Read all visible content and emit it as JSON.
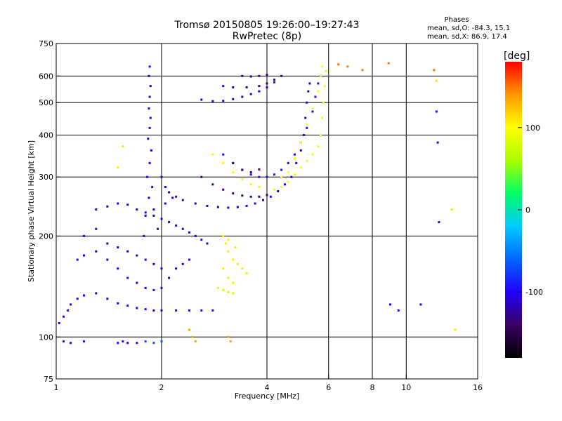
{
  "title_line1": "Tromsø 20150805 19:26:00–19:27:43",
  "title_line2": "RwPretec (8p)",
  "stats": {
    "heading": "Phases",
    "line_o": "mean, sd,O: -84.3, 15.1",
    "line_x": "mean, sd,X: 86.9, 17.4"
  },
  "colorbar": {
    "label": "[deg]",
    "min": -180,
    "max": 180,
    "ticks": [
      {
        "value": 100,
        "label": "100"
      },
      {
        "value": 0,
        "label": "0"
      },
      {
        "value": -100,
        "label": "-100"
      }
    ],
    "colors": [
      "#000000",
      "#3a0060",
      "#2200ff",
      "#0066ff",
      "#00ccff",
      "#00ff66",
      "#aaff00",
      "#ffff00",
      "#ff9900",
      "#ff0000"
    ]
  },
  "chart_data": {
    "type": "scatter",
    "x_scale": "log",
    "y_scale": "log",
    "xlabel": "Frequency [MHz]",
    "ylabel": "Stationary phase Virtual Height [km]",
    "xlim": [
      1,
      16
    ],
    "ylim": [
      75,
      750
    ],
    "xticks": [
      {
        "value": 1,
        "label": "1"
      },
      {
        "value": 2,
        "label": "2"
      },
      {
        "value": 4,
        "label": "4"
      },
      {
        "value": 6,
        "label": "6"
      },
      {
        "value": 8,
        "label": "8"
      },
      {
        "value": 10,
        "label": "10"
      },
      {
        "value": 16,
        "label": "16"
      }
    ],
    "yticks": [
      {
        "value": 75,
        "label": "75"
      },
      {
        "value": 100,
        "label": "100"
      },
      {
        "value": 200,
        "label": "200"
      },
      {
        "value": 300,
        "label": "300"
      },
      {
        "value": 400,
        "label": "400"
      },
      {
        "value": 500,
        "label": "500"
      },
      {
        "value": 600,
        "label": "600"
      },
      {
        "value": 750,
        "label": "750"
      }
    ],
    "grid": true,
    "series": [
      {
        "points": [
          [
            1.85,
            640
          ],
          [
            1.84,
            600
          ],
          [
            1.86,
            560
          ],
          [
            1.85,
            520
          ],
          [
            1.84,
            480
          ],
          [
            1.86,
            450
          ],
          [
            1.85,
            420
          ],
          [
            1.83,
            390
          ],
          [
            1.87,
            360
          ],
          [
            1.85,
            330
          ],
          [
            1.82,
            300
          ],
          [
            1.88,
            280
          ],
          [
            1.84,
            260
          ],
          [
            1.9,
            240
          ],
          [
            1.8,
            230
          ],
          [
            1.95,
            210
          ],
          [
            1.78,
            200
          ],
          [
            2.05,
            250
          ],
          [
            2.15,
            260
          ]
        ],
        "phase": -105
      },
      {
        "points": [
          [
            2.0,
            300
          ],
          [
            2.05,
            280
          ],
          [
            2.1,
            270
          ],
          [
            2.2,
            262
          ],
          [
            2.3,
            256
          ],
          [
            2.5,
            250
          ],
          [
            2.7,
            246
          ],
          [
            2.9,
            244
          ],
          [
            3.1,
            243
          ],
          [
            3.3,
            244
          ],
          [
            3.5,
            246
          ],
          [
            3.7,
            250
          ],
          [
            3.9,
            256
          ],
          [
            4.1,
            262
          ],
          [
            4.3,
            272
          ],
          [
            4.5,
            285
          ],
          [
            4.7,
            300
          ],
          [
            4.85,
            330
          ],
          [
            5.0,
            360
          ],
          [
            5.1,
            400
          ],
          [
            5.15,
            450
          ],
          [
            5.2,
            500
          ],
          [
            5.25,
            540
          ],
          [
            5.3,
            570
          ]
        ],
        "phase": -110
      },
      {
        "points": [
          [
            2.6,
            510
          ],
          [
            2.8,
            505
          ],
          [
            3.0,
            506
          ],
          [
            3.2,
            512
          ],
          [
            3.4,
            520
          ],
          [
            3.6,
            530
          ],
          [
            3.8,
            540
          ],
          [
            4.0,
            555
          ],
          [
            4.2,
            575
          ],
          [
            4.4,
            600
          ]
        ],
        "phase": -115
      },
      {
        "points": [
          [
            3.0,
            560
          ],
          [
            3.2,
            555
          ],
          [
            3.5,
            555
          ],
          [
            3.8,
            560
          ],
          [
            4.0,
            570
          ],
          [
            4.2,
            585
          ]
        ],
        "phase": -125
      },
      {
        "points": [
          [
            3.4,
            600
          ],
          [
            3.6,
            598
          ],
          [
            3.8,
            600
          ],
          [
            4.0,
            605
          ]
        ],
        "phase": -120
      },
      {
        "points": [
          [
            3.0,
            350
          ],
          [
            3.2,
            330
          ],
          [
            3.4,
            315
          ],
          [
            3.6,
            305
          ],
          [
            3.8,
            300
          ],
          [
            4.0,
            300
          ],
          [
            4.2,
            305
          ],
          [
            4.4,
            315
          ],
          [
            4.6,
            330
          ],
          [
            4.8,
            350
          ],
          [
            5.0,
            380
          ],
          [
            5.2,
            420
          ],
          [
            5.4,
            470
          ],
          [
            5.5,
            520
          ],
          [
            5.6,
            570
          ],
          [
            5.7,
            600
          ]
        ],
        "phase": -95
      },
      {
        "points": [
          [
            2.6,
            300
          ],
          [
            2.8,
            285
          ],
          [
            3.0,
            275
          ],
          [
            3.2,
            268
          ],
          [
            3.4,
            264
          ],
          [
            3.6,
            262
          ],
          [
            3.8,
            262
          ],
          [
            4.0,
            265
          ]
        ],
        "phase": -135
      },
      {
        "points": [
          [
            3.2,
            330
          ],
          [
            3.4,
            315
          ],
          [
            3.6,
            310
          ],
          [
            3.8,
            316
          ]
        ],
        "phase": -140
      },
      {
        "points": [
          [
            4.2,
            275
          ],
          [
            4.4,
            280
          ],
          [
            4.6,
            290
          ],
          [
            4.8,
            305
          ],
          [
            5.0,
            320
          ],
          [
            5.2,
            335
          ],
          [
            5.4,
            350
          ],
          [
            5.6,
            370
          ],
          [
            5.7,
            400
          ],
          [
            5.75,
            450
          ],
          [
            5.8,
            500
          ],
          [
            5.85,
            560
          ],
          [
            5.9,
            620
          ]
        ],
        "phase": 95
      },
      {
        "points": [
          [
            2.8,
            350
          ],
          [
            3.0,
            330
          ],
          [
            3.2,
            310
          ],
          [
            3.4,
            295
          ],
          [
            3.6,
            285
          ],
          [
            3.8,
            280
          ]
        ],
        "phase": 105
      },
      {
        "points": [
          [
            4.4,
            300
          ],
          [
            4.6,
            310
          ],
          [
            4.8,
            340
          ],
          [
            5.0,
            380
          ],
          [
            5.2,
            430
          ],
          [
            5.4,
            480
          ],
          [
            5.6,
            540
          ],
          [
            5.7,
            600
          ],
          [
            5.75,
            640
          ]
        ],
        "phase": 100
      },
      {
        "points": [
          [
            3.0,
            200
          ],
          [
            3.05,
            190
          ],
          [
            3.1,
            180
          ],
          [
            3.2,
            170
          ],
          [
            3.3,
            165
          ],
          [
            3.4,
            160
          ],
          [
            3.5,
            155
          ],
          [
            3.1,
            150
          ],
          [
            3.2,
            145
          ],
          [
            3.0,
            160
          ],
          [
            3.1,
            195
          ],
          [
            3.25,
            185
          ]
        ],
        "phase": 108
      },
      {
        "points": [
          [
            2.9,
            140
          ],
          [
            3.0,
            138
          ],
          [
            3.1,
            136
          ],
          [
            3.2,
            135
          ]
        ],
        "phase": 80
      },
      {
        "points": [
          [
            1.02,
            110
          ],
          [
            1.05,
            115
          ],
          [
            1.08,
            120
          ],
          [
            1.1,
            125
          ],
          [
            1.15,
            130
          ],
          [
            1.2,
            133
          ],
          [
            1.3,
            135
          ],
          [
            1.4,
            130
          ],
          [
            1.5,
            126
          ],
          [
            1.6,
            124
          ],
          [
            1.7,
            122
          ],
          [
            1.8,
            121
          ],
          [
            1.9,
            120
          ],
          [
            2.0,
            120
          ],
          [
            2.2,
            120
          ],
          [
            2.4,
            120
          ],
          [
            2.6,
            120
          ],
          [
            2.8,
            120
          ]
        ],
        "phase": -102
      },
      {
        "points": [
          [
            1.15,
            170
          ],
          [
            1.2,
            175
          ],
          [
            1.3,
            180
          ],
          [
            1.4,
            170
          ],
          [
            1.5,
            160
          ],
          [
            1.6,
            150
          ],
          [
            1.7,
            145
          ],
          [
            1.8,
            140
          ],
          [
            1.9,
            138
          ],
          [
            2.0,
            140
          ],
          [
            2.1,
            150
          ],
          [
            2.2,
            160
          ],
          [
            2.3,
            165
          ],
          [
            2.4,
            170
          ]
        ],
        "phase": -106
      },
      {
        "points": [
          [
            1.3,
            240
          ],
          [
            1.4,
            245
          ],
          [
            1.5,
            250
          ],
          [
            1.6,
            248
          ],
          [
            1.7,
            240
          ],
          [
            1.8,
            235
          ],
          [
            1.9,
            230
          ],
          [
            2.0,
            225
          ],
          [
            2.1,
            220
          ],
          [
            2.2,
            215
          ],
          [
            2.3,
            210
          ],
          [
            2.4,
            205
          ],
          [
            2.5,
            200
          ],
          [
            2.6,
            195
          ],
          [
            2.7,
            190
          ]
        ],
        "phase": -108
      },
      {
        "points": [
          [
            1.2,
            200
          ],
          [
            1.3,
            210
          ],
          [
            1.4,
            190
          ],
          [
            1.5,
            185
          ],
          [
            1.6,
            180
          ],
          [
            1.7,
            175
          ],
          [
            1.8,
            170
          ],
          [
            1.9,
            165
          ],
          [
            2.0,
            160
          ]
        ],
        "phase": -112
      },
      {
        "points": [
          [
            1.05,
            97
          ],
          [
            1.1,
            96
          ],
          [
            1.2,
            97
          ],
          [
            1.5,
            96
          ],
          [
            1.55,
            97
          ],
          [
            1.6,
            96
          ],
          [
            1.7,
            96
          ]
        ],
        "phase": -100
      },
      {
        "points": [
          [
            1.8,
            97
          ],
          [
            1.9,
            96
          ],
          [
            2.0,
            97
          ]
        ],
        "phase": -70
      },
      {
        "points": [
          [
            2.4,
            105
          ],
          [
            2.45,
            100
          ],
          [
            2.5,
            97
          ],
          [
            3.1,
            100
          ],
          [
            3.15,
            97
          ]
        ],
        "phase": 135
      },
      {
        "points": [
          [
            6.4,
            650
          ],
          [
            6.8,
            640
          ],
          [
            7.5,
            625
          ],
          [
            8.9,
            655
          ],
          [
            12.0,
            625
          ]
        ],
        "phase": 150
      },
      {
        "points": [
          [
            9.0,
            125
          ],
          [
            9.5,
            120
          ],
          [
            11.0,
            125
          ],
          [
            12.2,
            470
          ],
          [
            12.3,
            380
          ],
          [
            12.4,
            220
          ]
        ],
        "phase": -100
      },
      {
        "points": [
          [
            1.55,
            370
          ],
          [
            1.5,
            320
          ],
          [
            13.5,
            240
          ],
          [
            13.8,
            105
          ],
          [
            12.2,
            580
          ]
        ],
        "phase": 110
      }
    ]
  }
}
